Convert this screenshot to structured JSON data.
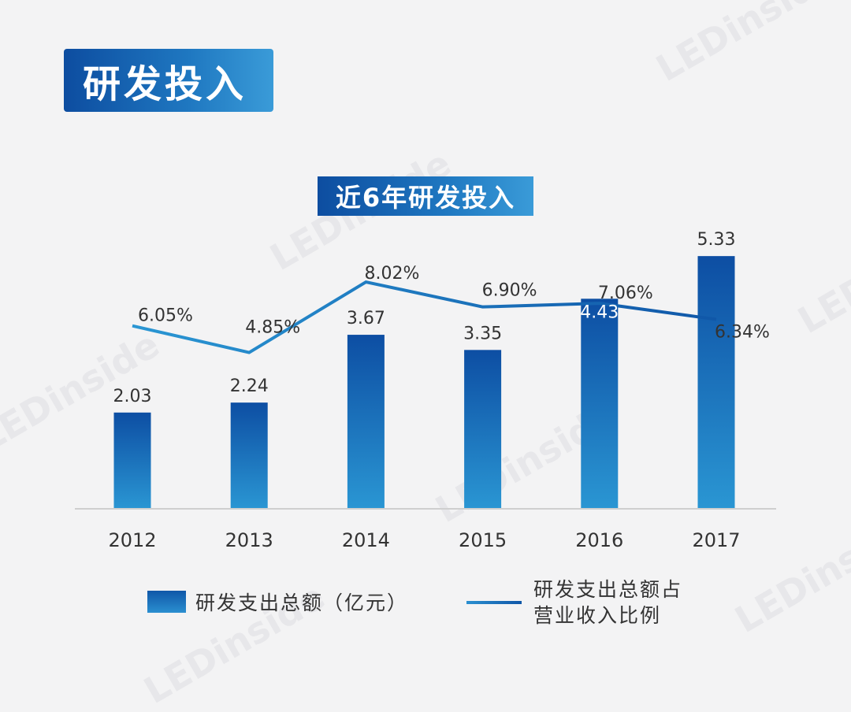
{
  "header": {
    "title": "研发投入"
  },
  "watermark": "LEDinside",
  "chart_data": {
    "type": "bar",
    "title": "近6年研发投入",
    "categories": [
      "2012",
      "2013",
      "2014",
      "2015",
      "2016",
      "2017"
    ],
    "series": [
      {
        "name": "研发支出总额（亿元）",
        "type": "bar",
        "values": [
          2.03,
          2.24,
          3.67,
          3.35,
          4.43,
          5.33
        ],
        "labels": [
          "2.03",
          "2.24",
          "3.67",
          "3.35",
          "4.43",
          "5.33"
        ]
      },
      {
        "name": "研发支出总额占营业收入比例",
        "type": "line",
        "values": [
          6.05,
          4.85,
          8.02,
          6.9,
          7.06,
          6.34
        ],
        "labels": [
          "6.05%",
          "4.85%",
          "8.02%",
          "6.90%",
          "7.06%",
          "6.34%"
        ]
      }
    ],
    "legend": {
      "bar_label": "研发支出总额（亿元）",
      "line_label_1": "研发支出总额占",
      "line_label_2": "营业收入比例"
    },
    "colors": {
      "bar_top": "#0d4ea3",
      "bar_bottom": "#2a96d3",
      "line": "#1a6fbe",
      "axis": "#cccccc",
      "text": "#333333"
    }
  }
}
